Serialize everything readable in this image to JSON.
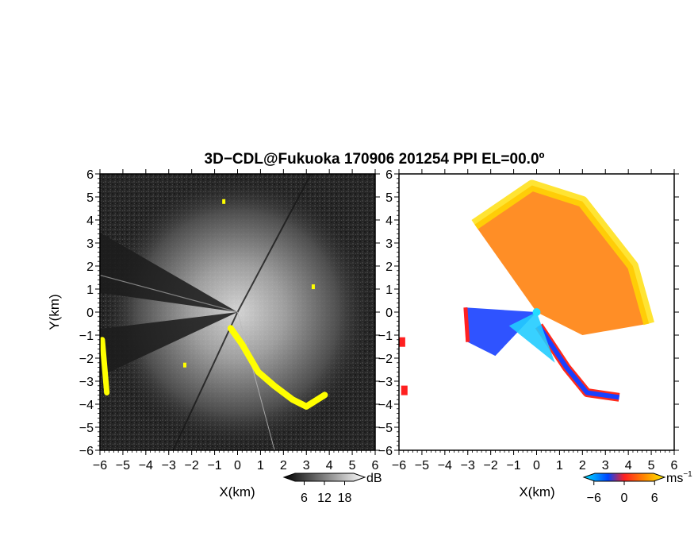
{
  "title": "3D−CDL@Fukuoka 170906 201254 PPI EL=00.0º",
  "chart_data": [
    {
      "type": "heatmap",
      "name": "reflectivity",
      "xlabel": "X(km)",
      "ylabel": "Y(km)",
      "xlim": [
        -6,
        6
      ],
      "ylim": [
        -6,
        6
      ],
      "x_ticks": [
        "−6",
        "−5",
        "−4",
        "−3",
        "−2",
        "−1",
        "0",
        "1",
        "2",
        "3",
        "4",
        "5",
        "6"
      ],
      "y_ticks": [
        "−6",
        "−5",
        "−4",
        "−3",
        "−2",
        "−1",
        "0",
        "1",
        "2",
        "3",
        "4",
        "5",
        "6"
      ],
      "colorbar": {
        "unit": "dB",
        "scale": "grayscale",
        "ticks": [
          "6",
          "12",
          "18"
        ],
        "tick_values": [
          6,
          12,
          18
        ],
        "range": [
          0,
          24
        ]
      },
      "beam_block_sectors_deg": [
        [
          150,
          172
        ],
        [
          187,
          205
        ]
      ],
      "highlight_color": "#ffff00",
      "yellow_echo_regions": [
        {
          "label": "south-east band",
          "points": [
            [
              -0.3,
              -0.7
            ],
            [
              0.2,
              -1.4
            ],
            [
              0.9,
              -2.6
            ],
            [
              1.6,
              -3.2
            ],
            [
              2.4,
              -3.8
            ],
            [
              3.0,
              -4.1
            ],
            [
              3.8,
              -3.6
            ]
          ]
        },
        {
          "label": "west edge",
          "points": [
            [
              -5.9,
              -1.2
            ],
            [
              -5.7,
              -3.5
            ]
          ]
        },
        {
          "label": "small cells",
          "points": [
            [
              -2.3,
              -2.3
            ],
            [
              -0.6,
              4.8
            ],
            [
              3.3,
              1.1
            ]
          ]
        }
      ]
    },
    {
      "type": "heatmap",
      "name": "doppler velocity",
      "xlabel": "X(km)",
      "xlim": [
        -6,
        6
      ],
      "ylim": [
        -6,
        6
      ],
      "x_ticks": [
        "−6",
        "−5",
        "−4",
        "−3",
        "−2",
        "−1",
        "0",
        "1",
        "2",
        "3",
        "4",
        "5",
        "6"
      ],
      "y_ticks": [
        "−6",
        "−5",
        "−4",
        "−3",
        "−2",
        "−1",
        "0",
        "1",
        "2",
        "3",
        "4",
        "5",
        "6"
      ],
      "colorbar": {
        "unit": "ms",
        "unit_exponent": "−1",
        "ticks": [
          "−6",
          "0",
          "6"
        ],
        "tick_values": [
          -6,
          0,
          6
        ],
        "range": [
          -8,
          8
        ],
        "colors": [
          "#00e5ff",
          "#0044ff",
          "#ff2020",
          "#ff8800",
          "#ffee00"
        ]
      },
      "regions": [
        {
          "label": "receding (orange/yellow)",
          "velocity": 4,
          "points": [
            [
              -2.7,
              3.8
            ],
            [
              -0.2,
              5.5
            ],
            [
              2,
              4.8
            ],
            [
              4.2,
              2
            ],
            [
              4.9,
              -0.5
            ],
            [
              2,
              -1
            ],
            [
              0,
              0
            ]
          ]
        },
        {
          "label": "approaching (blue)",
          "velocity": -4,
          "points": [
            [
              -3.1,
              0.2
            ],
            [
              -3.0,
              -1.3
            ],
            [
              -1.8,
              -1.9
            ],
            [
              0,
              0
            ]
          ]
        },
        {
          "label": "blue streak south-east",
          "velocity": -3,
          "points": [
            [
              0.1,
              -0.6
            ],
            [
              1.3,
              -2.4
            ],
            [
              2.2,
              -3.5
            ],
            [
              3.6,
              -3.7
            ]
          ]
        },
        {
          "label": "cyan near radar",
          "velocity": -6,
          "points": [
            [
              0,
              0
            ],
            [
              -1.2,
              -0.6
            ],
            [
              0.8,
              -2.2
            ]
          ]
        }
      ]
    }
  ]
}
